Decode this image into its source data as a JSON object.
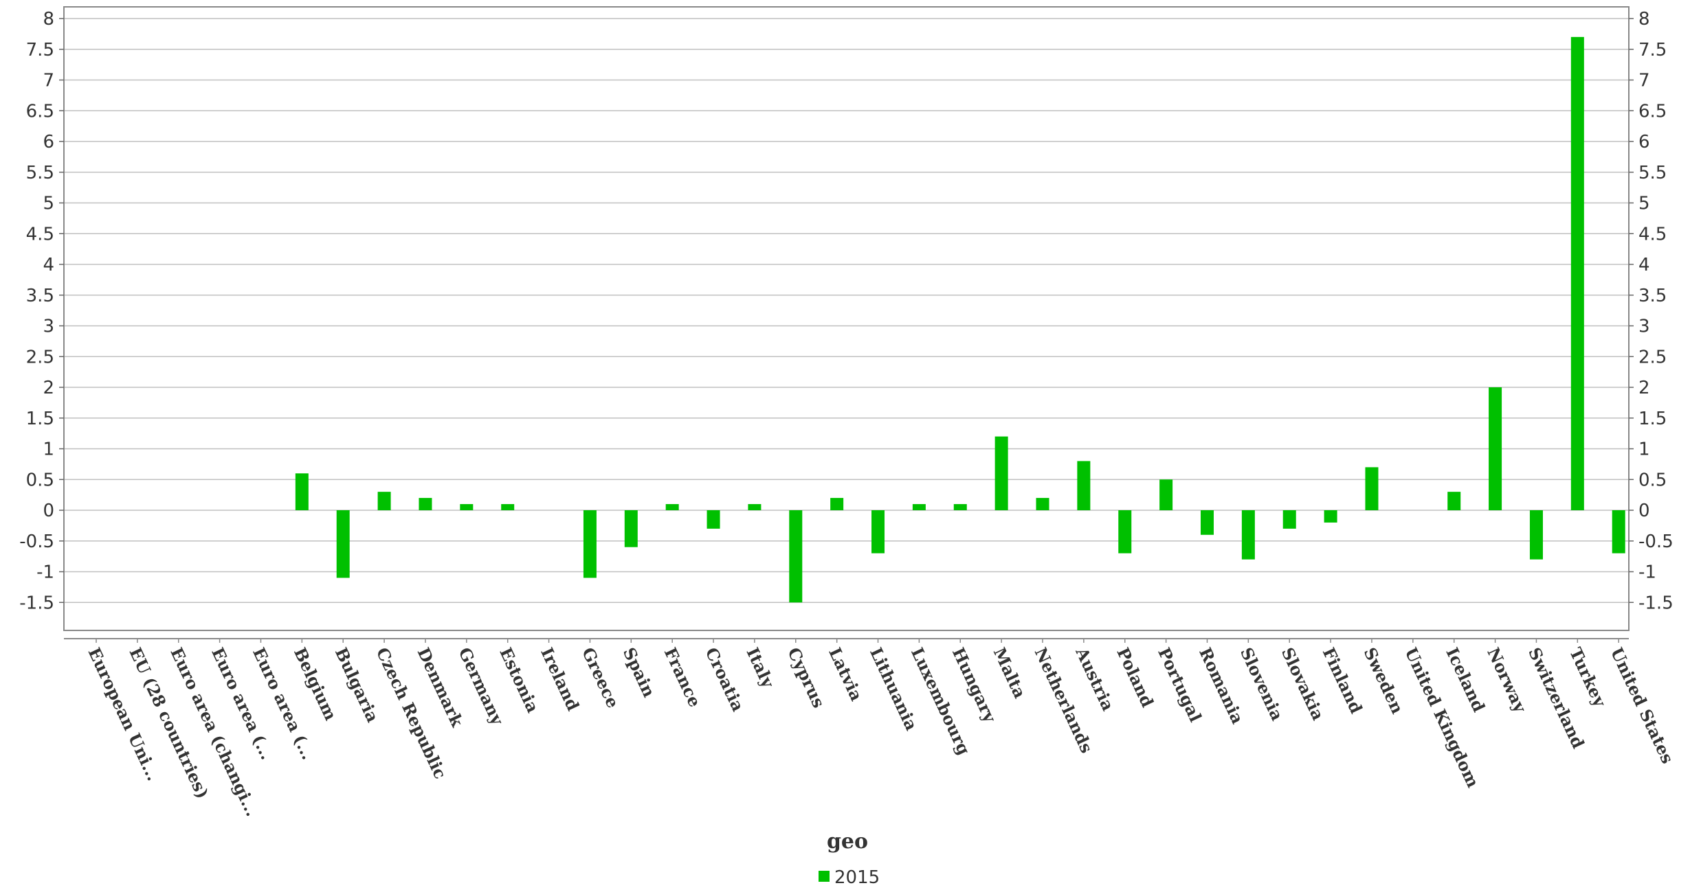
{
  "chart_data": {
    "type": "bar",
    "xlabel": "geo",
    "ylabel": "",
    "ylim": [
      -2,
      8
    ],
    "yticks": [
      -1.5,
      -1,
      -0.5,
      0,
      0.5,
      1,
      1.5,
      2,
      2.5,
      3,
      3.5,
      4,
      4.5,
      5,
      5.5,
      6,
      6.5,
      7,
      7.5,
      8
    ],
    "ytick_labels": [
      "-1.5",
      "-1",
      "-0.5",
      "0",
      "0.5",
      "1",
      "1.5",
      "2",
      "2.5",
      "3",
      "3.5",
      "4",
      "4.5",
      "5",
      "5.5",
      "6",
      "6.5",
      "7",
      "7.5",
      "8"
    ],
    "grid": true,
    "legend_position": "bottom-center",
    "categories": [
      "European Uni...",
      "EU (28 countries)",
      "Euro area (changi...",
      "Euro area (...",
      "Euro area (...",
      "Belgium",
      "Bulgaria",
      "Czech Republic",
      "Denmark",
      "Germany",
      "Estonia",
      "Ireland",
      "Greece",
      "Spain",
      "France",
      "Croatia",
      "Italy",
      "Cyprus",
      "Latvia",
      "Lithuania",
      "Luxembourg",
      "Hungary",
      "Malta",
      "Netherlands",
      "Austria",
      "Poland",
      "Portugal",
      "Romania",
      "Slovenia",
      "Slovakia",
      "Finland",
      "Sweden",
      "United Kingdom",
      "Iceland",
      "Norway",
      "Switzerland",
      "Turkey",
      "United States"
    ],
    "series": [
      {
        "name": "2015",
        "color": "#00c000",
        "values": [
          null,
          null,
          null,
          null,
          null,
          0.6,
          -1.1,
          0.3,
          0.2,
          0.1,
          0.1,
          null,
          -1.1,
          -0.6,
          0.1,
          -0.3,
          0.1,
          -1.5,
          0.2,
          -0.7,
          0.1,
          0.1,
          1.2,
          0.2,
          0.8,
          -0.7,
          0.5,
          -0.4,
          -0.8,
          -0.3,
          -0.2,
          0.7,
          null,
          0.3,
          2.0,
          -0.8,
          7.7,
          -0.7
        ]
      }
    ]
  }
}
